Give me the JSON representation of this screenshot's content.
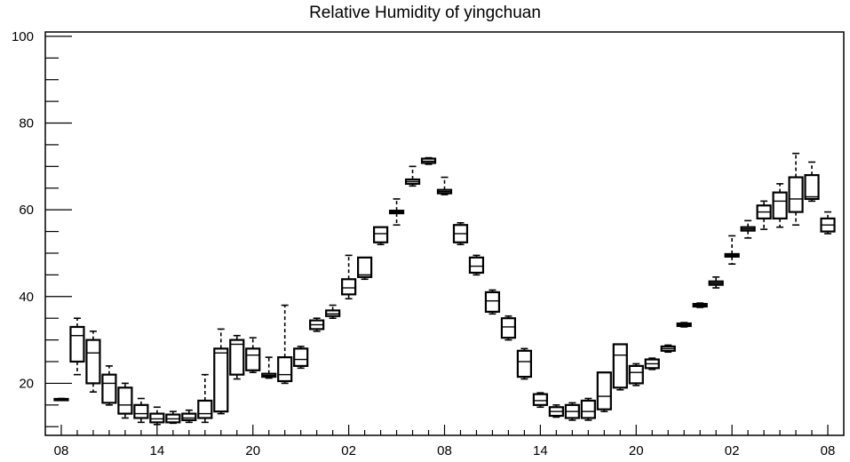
{
  "chart_data": {
    "type": "box",
    "title": "Relative Humidity of yingchuan",
    "xlabel": "",
    "ylabel": "",
    "ylim": [
      8,
      101
    ],
    "y_ticks": [
      20,
      40,
      60,
      80,
      100
    ],
    "x_ticks": [
      {
        "hour": 0,
        "label": "08"
      },
      {
        "hour": 6,
        "label": "14"
      },
      {
        "hour": 12,
        "label": "20"
      },
      {
        "hour": 18,
        "label": "02"
      },
      {
        "hour": 24,
        "label": "08"
      },
      {
        "hour": 30,
        "label": "14"
      },
      {
        "hour": 36,
        "label": "20"
      },
      {
        "hour": 42,
        "label": "02"
      },
      {
        "hour": 48,
        "label": "08"
      }
    ],
    "xlim": [
      -1,
      49
    ],
    "boxes": [
      {
        "hour": 0,
        "q1": 16.2,
        "q3": 16.4,
        "median": 16.3,
        "min": 16.1,
        "max": 16.5
      },
      {
        "hour": 1,
        "q1": 25,
        "q3": 33,
        "median": 31,
        "min": 22,
        "max": 35
      },
      {
        "hour": 2,
        "q1": 20,
        "q3": 30,
        "median": 27,
        "min": 18,
        "max": 32
      },
      {
        "hour": 3,
        "q1": 15.5,
        "q3": 22,
        "median": 20,
        "min": 15,
        "max": 24
      },
      {
        "hour": 4,
        "q1": 13,
        "q3": 19,
        "median": 15,
        "min": 12,
        "max": 20
      },
      {
        "hour": 5,
        "q1": 12,
        "q3": 15,
        "median": 13,
        "min": 11,
        "max": 16.5
      },
      {
        "hour": 6,
        "q1": 11,
        "q3": 13,
        "median": 11.8,
        "min": 10.5,
        "max": 14.5
      },
      {
        "hour": 7,
        "q1": 11,
        "q3": 12.8,
        "median": 11.8,
        "min": 10.8,
        "max": 13.5
      },
      {
        "hour": 8,
        "q1": 11.5,
        "q3": 13,
        "median": 12,
        "min": 11,
        "max": 13.8
      },
      {
        "hour": 9,
        "q1": 12,
        "q3": 16,
        "median": 13,
        "min": 11,
        "max": 22
      },
      {
        "hour": 10,
        "q1": 13.5,
        "q3": 28,
        "median": 27,
        "min": 13,
        "max": 32.5
      },
      {
        "hour": 11,
        "q1": 22,
        "q3": 30,
        "median": 29,
        "min": 21,
        "max": 31
      },
      {
        "hour": 12,
        "q1": 23,
        "q3": 28,
        "median": 26.5,
        "min": 22.5,
        "max": 30.5
      },
      {
        "hour": 13,
        "q1": 21.5,
        "q3": 22.2,
        "median": 21.8,
        "min": 21.2,
        "max": 26
      },
      {
        "hour": 14,
        "q1": 20.5,
        "q3": 26,
        "median": 22,
        "min": 20,
        "max": 38
      },
      {
        "hour": 15,
        "q1": 24,
        "q3": 28,
        "median": 25.5,
        "min": 23.5,
        "max": 28.5
      },
      {
        "hour": 16,
        "q1": 32.5,
        "q3": 34.5,
        "median": 33.5,
        "min": 32,
        "max": 35
      },
      {
        "hour": 17,
        "q1": 35.5,
        "q3": 36.8,
        "median": 36,
        "min": 35,
        "max": 38
      },
      {
        "hour": 18,
        "q1": 40.5,
        "q3": 44,
        "median": 42,
        "min": 39.5,
        "max": 49.5
      },
      {
        "hour": 19,
        "q1": 44.5,
        "q3": 49,
        "median": 45,
        "min": 44,
        "max": 49
      },
      {
        "hour": 20,
        "q1": 52.5,
        "q3": 56,
        "median": 54.5,
        "min": 52,
        "max": 56
      },
      {
        "hour": 21,
        "q1": 59.2,
        "q3": 59.8,
        "median": 59.5,
        "min": 56.5,
        "max": 62.5
      },
      {
        "hour": 22,
        "q1": 66,
        "q3": 67,
        "median": 66.5,
        "min": 65.5,
        "max": 70
      },
      {
        "hour": 23,
        "q1": 70.8,
        "q3": 71.8,
        "median": 71.2,
        "min": 70.5,
        "max": 72
      },
      {
        "hour": 24,
        "q1": 63.8,
        "q3": 64.6,
        "median": 64.2,
        "min": 63.5,
        "max": 67.5
      },
      {
        "hour": 25,
        "q1": 52.5,
        "q3": 56.5,
        "median": 54.5,
        "min": 52,
        "max": 57
      },
      {
        "hour": 26,
        "q1": 45.5,
        "q3": 49,
        "median": 47,
        "min": 45,
        "max": 49.5
      },
      {
        "hour": 27,
        "q1": 36.5,
        "q3": 41,
        "median": 39,
        "min": 36,
        "max": 41.5
      },
      {
        "hour": 28,
        "q1": 30.5,
        "q3": 35,
        "median": 33,
        "min": 30,
        "max": 35.5
      },
      {
        "hour": 29,
        "q1": 21.5,
        "q3": 27.5,
        "median": 25,
        "min": 21,
        "max": 28
      },
      {
        "hour": 30,
        "q1": 15,
        "q3": 17.5,
        "median": 16,
        "min": 14.5,
        "max": 17.8
      },
      {
        "hour": 31,
        "q1": 12.5,
        "q3": 14.5,
        "median": 13.5,
        "min": 12.2,
        "max": 15
      },
      {
        "hour": 32,
        "q1": 12,
        "q3": 15,
        "median": 13.5,
        "min": 11.5,
        "max": 15.5
      },
      {
        "hour": 33,
        "q1": 12,
        "q3": 16,
        "median": 13.5,
        "min": 11.5,
        "max": 16.5
      },
      {
        "hour": 34,
        "q1": 14,
        "q3": 22.5,
        "median": 17,
        "min": 13.5,
        "max": 22.5
      },
      {
        "hour": 35,
        "q1": 19,
        "q3": 29,
        "median": 26.5,
        "min": 18.5,
        "max": 29
      },
      {
        "hour": 36,
        "q1": 20,
        "q3": 24,
        "median": 22.5,
        "min": 19.5,
        "max": 24.5
      },
      {
        "hour": 37,
        "q1": 23.5,
        "q3": 25.5,
        "median": 24.5,
        "min": 23.2,
        "max": 25.8
      },
      {
        "hour": 38,
        "q1": 27.5,
        "q3": 28.5,
        "median": 28,
        "min": 27.2,
        "max": 28.8
      },
      {
        "hour": 39,
        "q1": 33.2,
        "q3": 33.8,
        "median": 33.5,
        "min": 33,
        "max": 34
      },
      {
        "hour": 40,
        "q1": 37.7,
        "q3": 38.3,
        "median": 38,
        "min": 37.5,
        "max": 38.5
      },
      {
        "hour": 41,
        "q1": 42.7,
        "q3": 43.5,
        "median": 43.1,
        "min": 42,
        "max": 44.5
      },
      {
        "hour": 42,
        "q1": 49.2,
        "q3": 49.8,
        "median": 49.5,
        "min": 47.5,
        "max": 54
      },
      {
        "hour": 43,
        "q1": 55.2,
        "q3": 56,
        "median": 55.6,
        "min": 53.5,
        "max": 57.5
      },
      {
        "hour": 44,
        "q1": 58,
        "q3": 61,
        "median": 59.5,
        "min": 55.5,
        "max": 62
      },
      {
        "hour": 45,
        "q1": 58,
        "q3": 64,
        "median": 62,
        "min": 56,
        "max": 66
      },
      {
        "hour": 46,
        "q1": 59.5,
        "q3": 67.5,
        "median": 62.5,
        "min": 56.5,
        "max": 73
      },
      {
        "hour": 47,
        "q1": 62.5,
        "q3": 68,
        "median": 63,
        "min": 62,
        "max": 71
      },
      {
        "hour": 48,
        "q1": 55,
        "q3": 58,
        "median": 56.5,
        "min": 54.5,
        "max": 59.5
      }
    ],
    "grid": false,
    "legend": "none"
  }
}
